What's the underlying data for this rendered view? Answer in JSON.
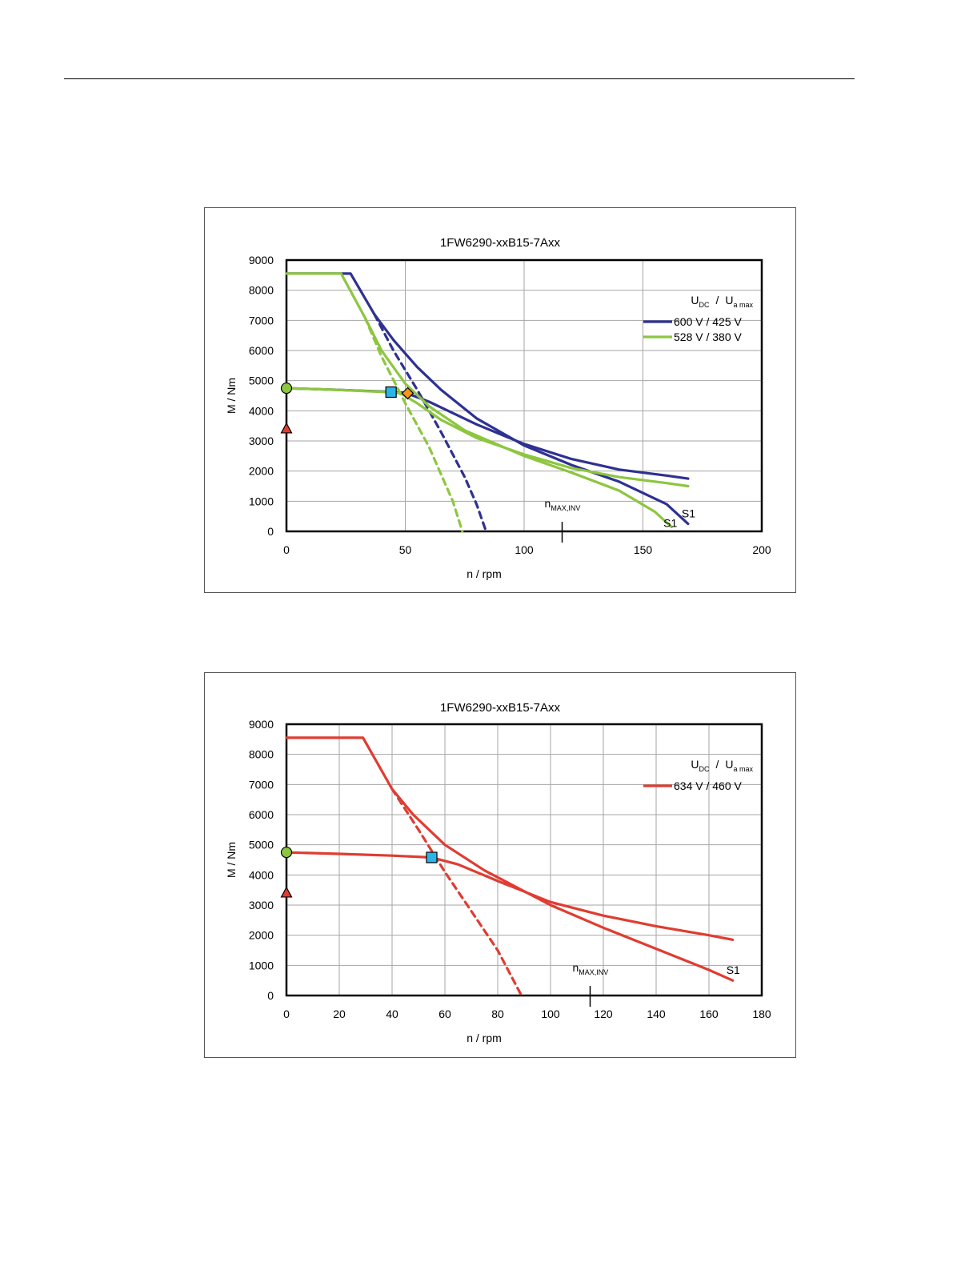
{
  "page": {},
  "chart_data": [
    {
      "type": "line",
      "title": "1FW6290-xxB15-7Axx",
      "xlabel": "n / rpm",
      "ylabel": "M / Nm",
      "xlim": [
        0,
        200
      ],
      "ylim": [
        0,
        9000
      ],
      "xticks": [
        0,
        50,
        100,
        150,
        200
      ],
      "yticks": [
        0,
        1000,
        2000,
        3000,
        4000,
        5000,
        6000,
        7000,
        8000,
        9000
      ],
      "grid": true,
      "legend_position": "top-right",
      "legend_header": {
        "u": "U",
        "u_sub": "DC",
        "slash": "/",
        "ua": "U",
        "ua_sub": "a max"
      },
      "series": [
        {
          "name": "600 V / 425 V",
          "color": "#2e3192",
          "style": "solid",
          "x": [
            0,
            27,
            37,
            45,
            55,
            65,
            80,
            100,
            120,
            140,
            160,
            169
          ],
          "y": [
            8550,
            8550,
            7200,
            6350,
            5450,
            4700,
            3750,
            2850,
            2200,
            1650,
            900,
            250
          ]
        },
        {
          "name": "",
          "color": "#2e3192",
          "style": "dashed",
          "x": [
            37,
            45,
            55,
            65,
            75,
            80,
            84
          ],
          "y": [
            7200,
            6000,
            4700,
            3300,
            1800,
            900,
            0
          ]
        },
        {
          "name": "",
          "color": "#2e3192",
          "style": "solid",
          "x": [
            0,
            20,
            40,
            50,
            60,
            80,
            100,
            120,
            140,
            160,
            169
          ],
          "y": [
            4750,
            4700,
            4640,
            4600,
            4300,
            3550,
            2900,
            2400,
            2050,
            1850,
            1750
          ]
        },
        {
          "name": "528 V / 380 V",
          "color": "#8dc63f",
          "style": "solid",
          "x": [
            0,
            23,
            33,
            40,
            50,
            60,
            75,
            100,
            120,
            140,
            155,
            162
          ],
          "y": [
            8550,
            8550,
            7100,
            6000,
            4900,
            4150,
            3350,
            2500,
            1950,
            1350,
            650,
            150
          ]
        },
        {
          "name": "",
          "color": "#8dc63f",
          "style": "dashed",
          "x": [
            33,
            40,
            50,
            60,
            70,
            74
          ],
          "y": [
            7100,
            5800,
            4250,
            2800,
            1000,
            0
          ]
        },
        {
          "name": "",
          "color": "#8dc63f",
          "style": "solid",
          "x": [
            0,
            20,
            40,
            48,
            55,
            65,
            80,
            100,
            120,
            140,
            160,
            169
          ],
          "y": [
            4750,
            4700,
            4630,
            4580,
            4250,
            3700,
            3100,
            2550,
            2100,
            1800,
            1600,
            1500
          ]
        }
      ],
      "markers": [
        {
          "shape": "circle",
          "color": "#8dc63f",
          "x": 0,
          "y": 4750
        },
        {
          "shape": "triangle",
          "color": "#e03c31",
          "x": 0,
          "y": 3400
        },
        {
          "shape": "square",
          "color": "#29b6e6",
          "x": 44,
          "y": 4620
        },
        {
          "shape": "diamond",
          "color": "#f7941d",
          "x": 51,
          "y": 4580
        }
      ],
      "annotations": [
        {
          "text": "n",
          "sub": "MAX,INV",
          "x": 116
        },
        {
          "text": "S1",
          "x": 169,
          "y": 250
        },
        {
          "text": "S1",
          "x": 162,
          "y": 150
        }
      ]
    },
    {
      "type": "line",
      "title": "1FW6290-xxB15-7Axx",
      "xlabel": "n / rpm",
      "ylabel": "M / Nm",
      "xlim": [
        0,
        180
      ],
      "ylim": [
        0,
        9000
      ],
      "xticks": [
        0,
        20,
        40,
        60,
        80,
        100,
        120,
        140,
        160,
        180
      ],
      "yticks": [
        0,
        1000,
        2000,
        3000,
        4000,
        5000,
        6000,
        7000,
        8000,
        9000
      ],
      "grid": true,
      "legend_position": "top-right",
      "legend_header": {
        "u": "U",
        "u_sub": "DC",
        "slash": "/",
        "ua": "U",
        "ua_sub": "a max"
      },
      "series": [
        {
          "name": "634 V / 460 V",
          "color": "#e03c31",
          "style": "solid",
          "x": [
            0,
            29,
            40,
            48,
            60,
            75,
            100,
            120,
            140,
            160,
            169
          ],
          "y": [
            8550,
            8550,
            6850,
            6000,
            5000,
            4150,
            3000,
            2250,
            1550,
            850,
            500
          ]
        },
        {
          "name": "",
          "color": "#e03c31",
          "style": "dashed",
          "x": [
            40,
            50,
            60,
            70,
            80,
            86,
            89
          ],
          "y": [
            6850,
            5500,
            4100,
            2800,
            1500,
            500,
            0
          ]
        },
        {
          "name": "",
          "color": "#e03c31",
          "style": "solid",
          "x": [
            0,
            20,
            40,
            55,
            65,
            80,
            100,
            120,
            140,
            160,
            169
          ],
          "y": [
            4750,
            4700,
            4640,
            4580,
            4350,
            3800,
            3100,
            2650,
            2300,
            2000,
            1850
          ]
        }
      ],
      "markers": [
        {
          "shape": "circle",
          "color": "#8dc63f",
          "x": 0,
          "y": 4750
        },
        {
          "shape": "triangle",
          "color": "#e03c31",
          "x": 0,
          "y": 3400
        },
        {
          "shape": "square",
          "color": "#29b6e6",
          "x": 55,
          "y": 4580
        }
      ],
      "annotations": [
        {
          "text": "n",
          "sub": "MAX,INV",
          "x": 115
        },
        {
          "text": "S1",
          "x": 169,
          "y": 500
        }
      ]
    }
  ]
}
